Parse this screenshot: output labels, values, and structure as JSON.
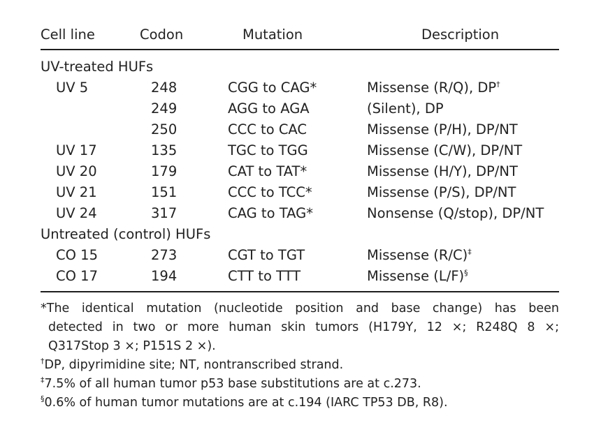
{
  "header": {
    "cell_line": "Cell line",
    "codon": "Codon",
    "mutation": "Mutation",
    "description": "Description"
  },
  "groups": [
    {
      "label": "UV-treated HUFs",
      "rows": [
        {
          "cell_line": "UV 5",
          "codon": "248",
          "mutation": "CGG to CAG*",
          "description": "Missense (R/Q), DP",
          "sup": "†"
        },
        {
          "cell_line": "",
          "codon": "249",
          "mutation": "AGG to AGA",
          "description": "(Silent), DP",
          "sup": ""
        },
        {
          "cell_line": "",
          "codon": "250",
          "mutation": "CCC to CAC",
          "description": "Missense (P/H), DP/NT",
          "sup": ""
        },
        {
          "cell_line": "UV 17",
          "codon": "135",
          "mutation": "TGC to TGG",
          "description": "Missense (C/W), DP/NT",
          "sup": ""
        },
        {
          "cell_line": "UV 20",
          "codon": "179",
          "mutation": "CAT to TAT*",
          "description": "Missense (H/Y), DP/NT",
          "sup": ""
        },
        {
          "cell_line": "UV 21",
          "codon": "151",
          "mutation": "CCC to TCC*",
          "description": "Missense (P/S), DP/NT",
          "sup": ""
        },
        {
          "cell_line": "UV 24",
          "codon": "317",
          "mutation": "CAG to TAG*",
          "description": "Nonsense (Q/stop), DP/NT",
          "sup": ""
        }
      ]
    },
    {
      "label": "Untreated (control) HUFs",
      "rows": [
        {
          "cell_line": "CO 15",
          "codon": "273",
          "mutation": "CGT to TGT",
          "description": "Missense (R/C)",
          "sup": "‡"
        },
        {
          "cell_line": "CO 17",
          "codon": "194",
          "mutation": "CTT to TTT",
          "description": "Missense (L/F)",
          "sup": "§"
        }
      ]
    }
  ],
  "footnotes": {
    "star": {
      "line1": "*The identical mutation (nucleotide position and base change) has been",
      "line2": "detected in two or more human skin tumors (H179Y, 12 ×; R248Q 8 ×;",
      "line3": "Q317Stop 3 ×; P151S 2 ×)."
    },
    "dagger": {
      "mark": "†",
      "text": "DP, dipyrimidine site; NT, nontranscribed strand."
    },
    "ddagger": {
      "mark": "‡",
      "text": "7.5% of all human tumor p53 base substitutions are at c.273."
    },
    "section": {
      "mark": "§",
      "text": "0.6% of human tumor mutations are at c.194 (IARC TP53 DB, R8)."
    }
  }
}
